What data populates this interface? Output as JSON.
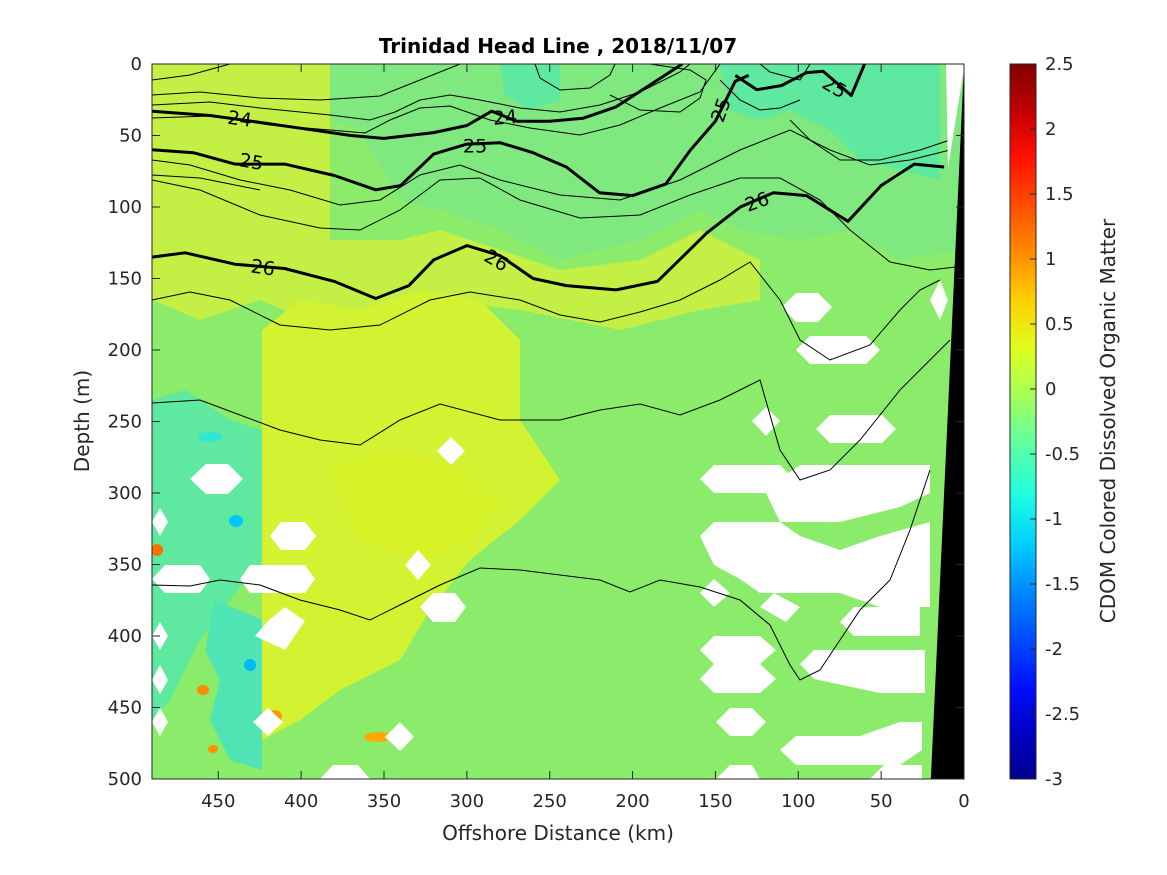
{
  "chart_data": {
    "type": "heatmap",
    "title": "Trinidad Head Line , 2018/11/07",
    "xlabel": "Offshore Distance (km)",
    "ylabel": "Depth (m)",
    "colorbar_label": "CDOM Colored Dissolved Organic Matter",
    "xlim": [
      490,
      0
    ],
    "ylim": [
      0,
      500
    ],
    "clim": [
      -3,
      2.5
    ],
    "x_ticks": [
      450,
      400,
      350,
      300,
      250,
      200,
      150,
      100,
      50,
      0
    ],
    "y_ticks": [
      0,
      50,
      100,
      150,
      200,
      250,
      300,
      350,
      400,
      450,
      500
    ],
    "colorbar_ticks": [
      2.5,
      2,
      1.5,
      1,
      0.5,
      0,
      -0.5,
      -1,
      -1.5,
      -2,
      -2.5,
      -3
    ],
    "colormap": [
      "#00008f",
      "#0000c8",
      "#0010ff",
      "#0050ff",
      "#0090ff",
      "#00d0ff",
      "#20ffdf",
      "#60ff9f",
      "#9fff60",
      "#dfff20",
      "#ffd000",
      "#ff9000",
      "#ff5000",
      "#ff1000",
      "#c80000",
      "#800000"
    ],
    "fill_regions": [
      {
        "name": "surface-green",
        "value": -0.2,
        "color": "#7fe87f"
      },
      {
        "name": "surface-cyan-patches",
        "value": -0.5,
        "color": "#5fe8a0"
      },
      {
        "name": "upper-offshore-yellowgreen",
        "value": 0.2,
        "color": "#c4f046"
      },
      {
        "name": "midwater-yellow",
        "value": 0.3,
        "color": "#d2f232"
      },
      {
        "name": "deep-onshore-green",
        "value": -0.1,
        "color": "#8aec6a"
      },
      {
        "name": "no-data",
        "value": null,
        "color": "#ffffff"
      },
      {
        "name": "bathymetry",
        "value": null,
        "color": "#000000"
      }
    ],
    "bathymetry": [
      [
        0,
        0
      ],
      [
        20,
        500
      ]
    ],
    "contours": [
      {
        "level": 24,
        "bold": true,
        "points": [
          [
            490,
            33
          ],
          [
            455,
            36
          ],
          [
            430,
            40
          ],
          [
            400,
            45
          ],
          [
            370,
            50
          ],
          [
            350,
            52
          ],
          [
            320,
            48
          ],
          [
            300,
            43
          ],
          [
            285,
            33
          ],
          [
            270,
            40
          ],
          [
            250,
            40
          ],
          [
            230,
            38
          ],
          [
            210,
            30
          ],
          [
            190,
            15
          ],
          [
            170,
            0
          ]
        ]
      },
      {
        "level": 25,
        "bold": true,
        "points": [
          [
            490,
            60
          ],
          [
            465,
            62
          ],
          [
            440,
            70
          ],
          [
            410,
            70
          ],
          [
            380,
            78
          ],
          [
            355,
            88
          ],
          [
            340,
            85
          ],
          [
            320,
            63
          ],
          [
            300,
            56
          ],
          [
            280,
            55
          ],
          [
            260,
            62
          ],
          [
            240,
            72
          ],
          [
            220,
            90
          ],
          [
            200,
            92
          ],
          [
            180,
            84
          ],
          [
            165,
            60
          ],
          [
            150,
            40
          ],
          [
            138,
            12
          ],
          [
            130,
            8
          ]
        ]
      },
      {
        "level": 25,
        "bold": true,
        "points": [
          [
            138,
            8
          ],
          [
            125,
            18
          ],
          [
            110,
            15
          ],
          [
            95,
            6
          ],
          [
            85,
            5
          ],
          [
            68,
            22
          ],
          [
            60,
            0
          ]
        ]
      },
      {
        "level": 26,
        "bold": true,
        "points": [
          [
            490,
            135
          ],
          [
            470,
            132
          ],
          [
            440,
            140
          ],
          [
            410,
            143
          ],
          [
            380,
            152
          ],
          [
            355,
            164
          ],
          [
            335,
            155
          ],
          [
            320,
            137
          ],
          [
            300,
            127
          ],
          [
            280,
            134
          ],
          [
            260,
            150
          ],
          [
            240,
            155
          ],
          [
            210,
            158
          ],
          [
            185,
            152
          ],
          [
            170,
            135
          ],
          [
            155,
            118
          ],
          [
            135,
            100
          ],
          [
            115,
            90
          ],
          [
            95,
            92
          ],
          [
            70,
            110
          ],
          [
            50,
            85
          ],
          [
            30,
            70
          ],
          [
            12,
            72
          ]
        ]
      }
    ],
    "contour_labels": [
      {
        "text": "24",
        "x": 437,
        "y": 38,
        "angle": 8
      },
      {
        "text": "24",
        "x": 277,
        "y": 37,
        "angle": -5
      },
      {
        "text": "25",
        "x": 430,
        "y": 68,
        "angle": 10
      },
      {
        "text": "25",
        "x": 295,
        "y": 57,
        "angle": 0
      },
      {
        "text": "25",
        "x": 147,
        "y": 32,
        "angle": -70
      },
      {
        "text": "25",
        "x": 78,
        "y": 16,
        "angle": 30
      },
      {
        "text": "26",
        "x": 423,
        "y": 142,
        "angle": 8
      },
      {
        "text": "26",
        "x": 282,
        "y": 137,
        "angle": 30
      },
      {
        "text": "26",
        "x": 125,
        "y": 96,
        "angle": -20
      }
    ]
  }
}
